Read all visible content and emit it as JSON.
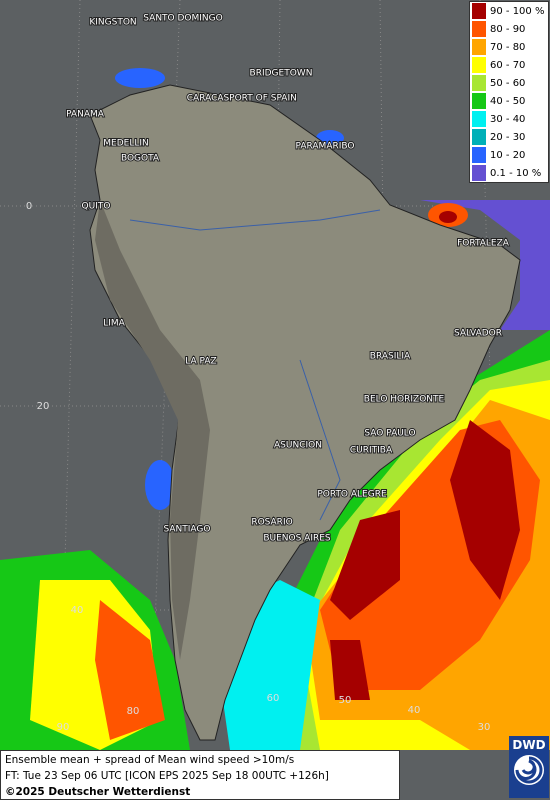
{
  "legend": {
    "entries": [
      {
        "label": "90 - 100 %",
        "color": "#a50000"
      },
      {
        "label": "80 - 90",
        "color": "#ff5500"
      },
      {
        "label": "70 - 80",
        "color": "#ffa500"
      },
      {
        "label": "60 - 70",
        "color": "#ffff00"
      },
      {
        "label": "50 - 60",
        "color": "#a8e632"
      },
      {
        "label": "40 - 50",
        "color": "#16c816"
      },
      {
        "label": "30 - 40",
        "color": "#00f0f0"
      },
      {
        "label": "20 - 30",
        "color": "#00b0b8"
      },
      {
        "label": "10 - 20",
        "color": "#2864ff"
      },
      {
        "label": "0.1 - 10 %",
        "color": "#6450d2"
      }
    ]
  },
  "cities": [
    "KINGSTON",
    "SANTO DOMINGO",
    "BRIDGETOWN",
    "PANAMA",
    "CARACAS",
    "PORT OF SPAIN",
    "MEDELLIN",
    "BOGOTA",
    "PARAMARIBO",
    "QUITO",
    "FORTALEZA",
    "LIMA",
    "SALVADOR",
    "LA PAZ",
    "BRASILIA",
    "BELO HORIZONTE",
    "SAO PAULO",
    "ASUNCION",
    "CURITIBA",
    "PORTO ALEGRE",
    "ROSARIO",
    "SANTIAGO",
    "BUENOS AIRES"
  ],
  "grid_labels": [
    "0",
    "20",
    "40",
    "60",
    "80",
    "90",
    "50",
    "40",
    "30"
  ],
  "footer": {
    "line1": "Ensemble mean + spread of Mean wind speed >10m/s",
    "line2": "FT: Tue 23 Sep 06 UTC [ICON EPS 2025 Sep 18 00UTC +126h]",
    "copyright": "©2025 Deutscher Wetterdienst"
  },
  "logo": "DWD"
}
